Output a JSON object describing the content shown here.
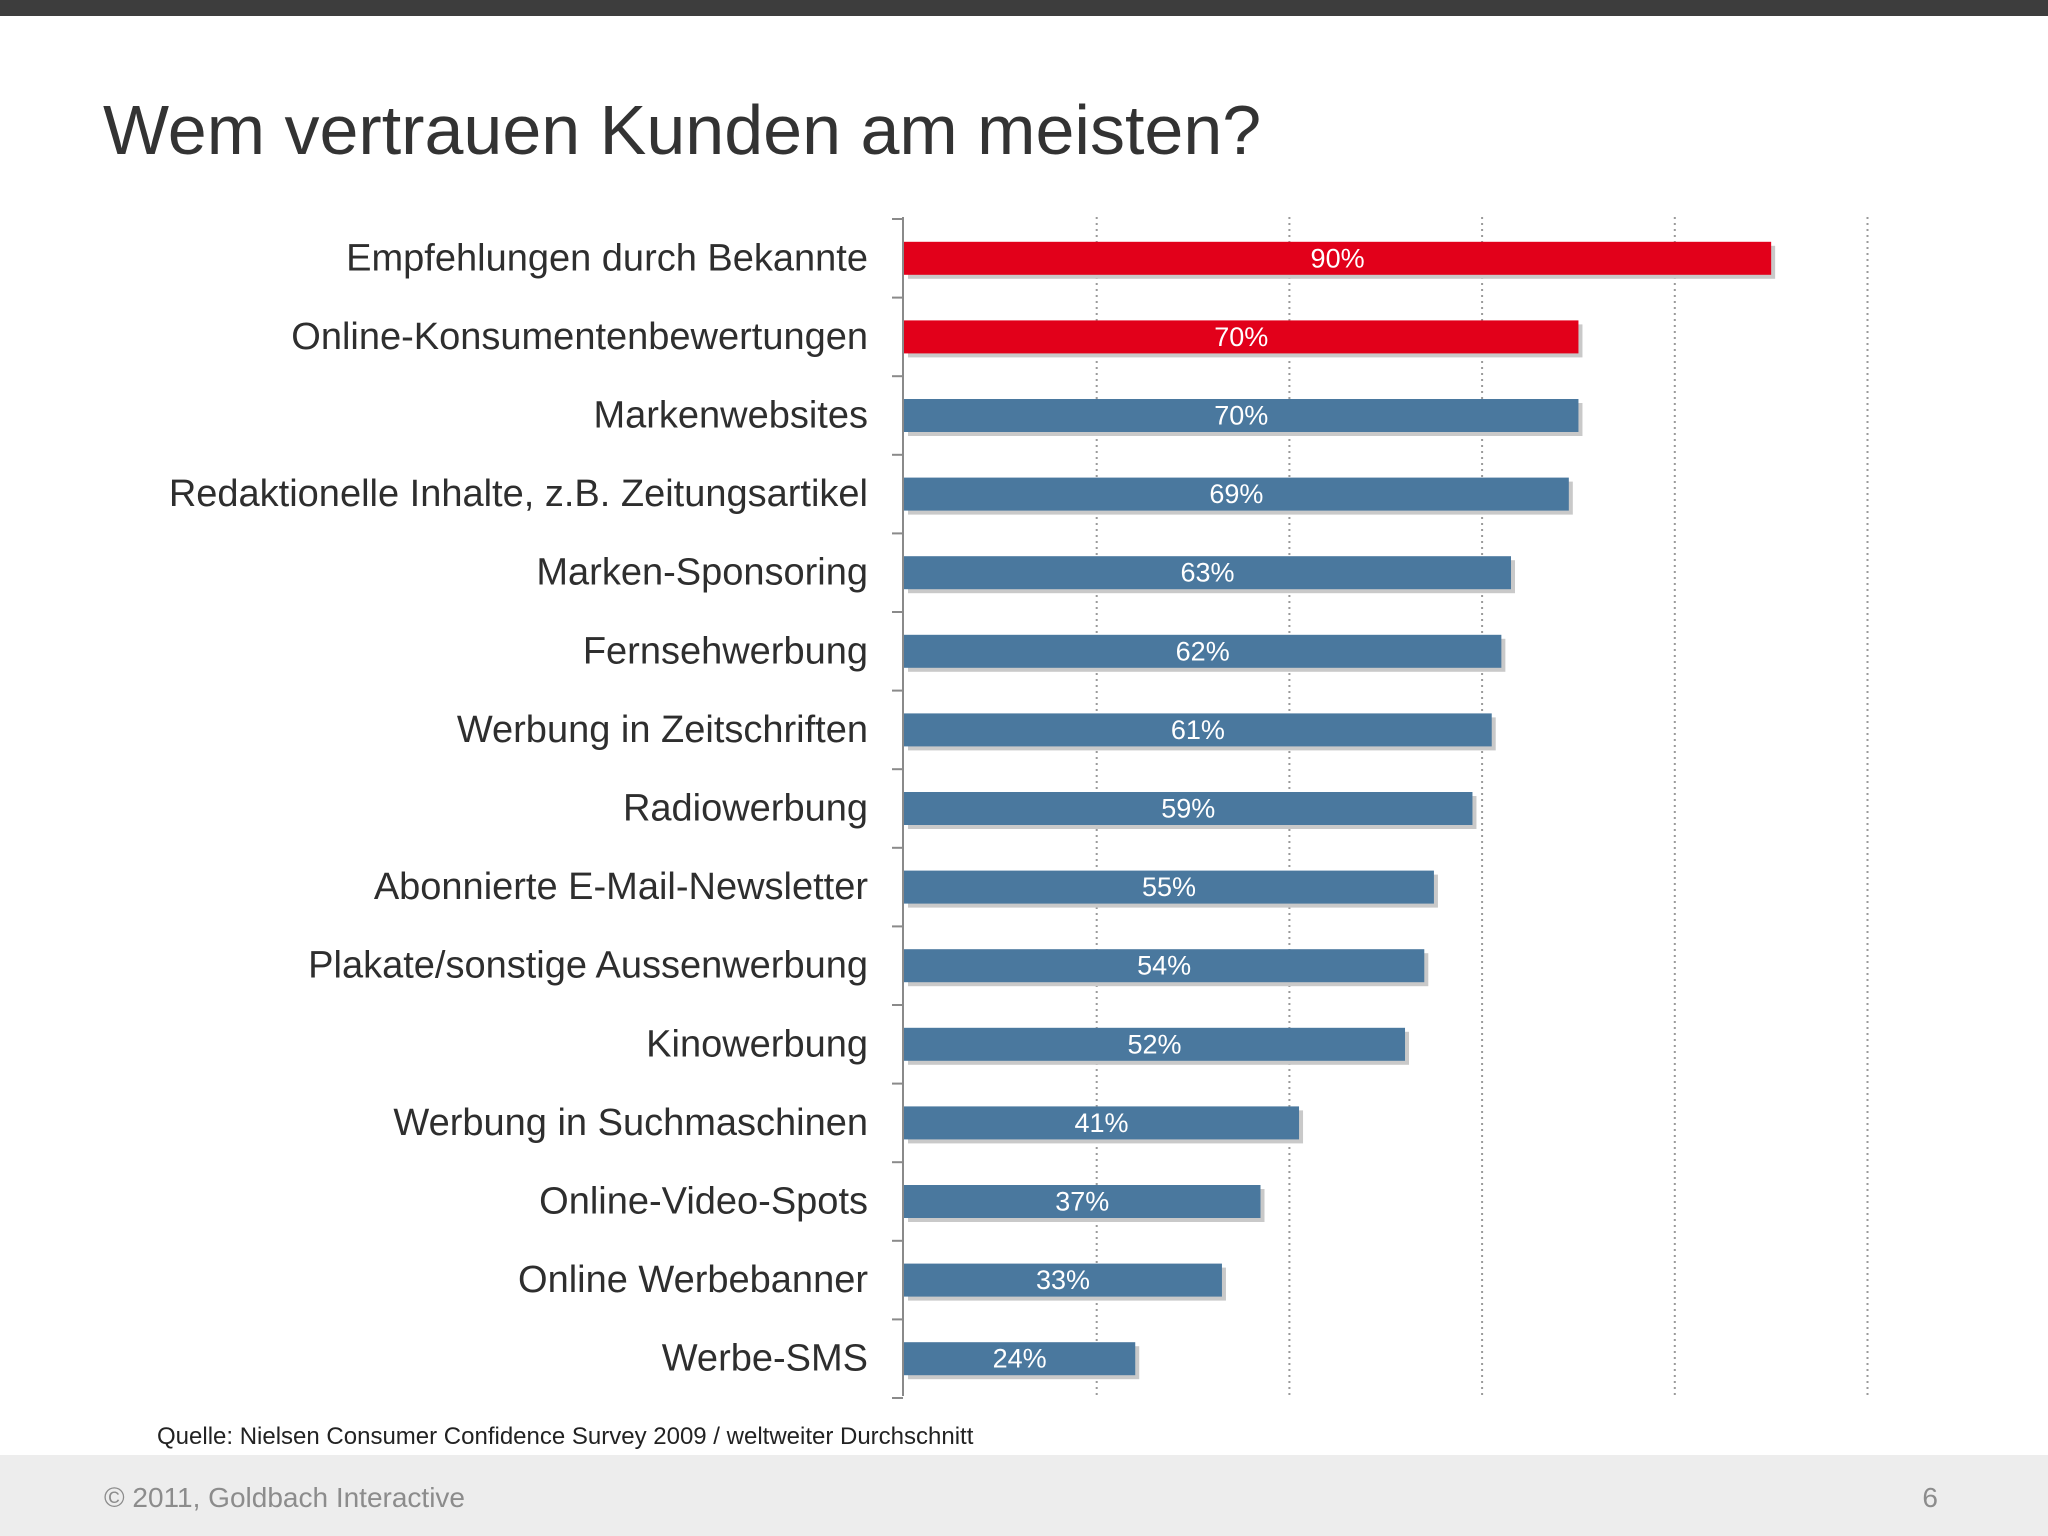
{
  "slide": {
    "title": "Wem vertrauen Kunden am meisten?",
    "source": "Quelle: Nielsen Consumer Confidence Survey 2009 / weltweiter Durchschnitt",
    "copyright": "© 2011, Goldbach Interactive",
    "page_number": "6"
  },
  "colors": {
    "highlight": "#e2001a",
    "default": "#4a789e",
    "label_text": "#ffffff"
  },
  "chart_data": {
    "type": "bar",
    "orientation": "horizontal",
    "categories": [
      "Empfehlungen durch Bekannte",
      "Online-Konsumentenbewertungen",
      "Markenwebsites",
      "Redaktionelle Inhalte, z.B. Zeitungsartikel",
      "Marken-Sponsoring",
      "Fernsehwerbung",
      "Werbung in Zeitschriften",
      "Radiowerbung",
      "Abonnierte E-Mail-Newsletter",
      "Plakate/sonstige Aussenwerbung",
      "Kinowerbung",
      "Werbung in Suchmaschinen",
      "Online-Video-Spots",
      "Online Werbebanner",
      "Werbe-SMS"
    ],
    "values": [
      90,
      70,
      70,
      69,
      63,
      62,
      61,
      59,
      55,
      54,
      52,
      41,
      37,
      33,
      24
    ],
    "value_labels": [
      "90%",
      "70%",
      "70%",
      "69%",
      "63%",
      "62%",
      "61%",
      "59%",
      "55%",
      "54%",
      "52%",
      "41%",
      "37%",
      "33%",
      "24%"
    ],
    "highlighted": [
      true,
      true,
      false,
      false,
      false,
      false,
      false,
      false,
      false,
      false,
      false,
      false,
      false,
      false,
      false
    ],
    "xlim": [
      0,
      100
    ],
    "grid": "vertical dotted"
  }
}
